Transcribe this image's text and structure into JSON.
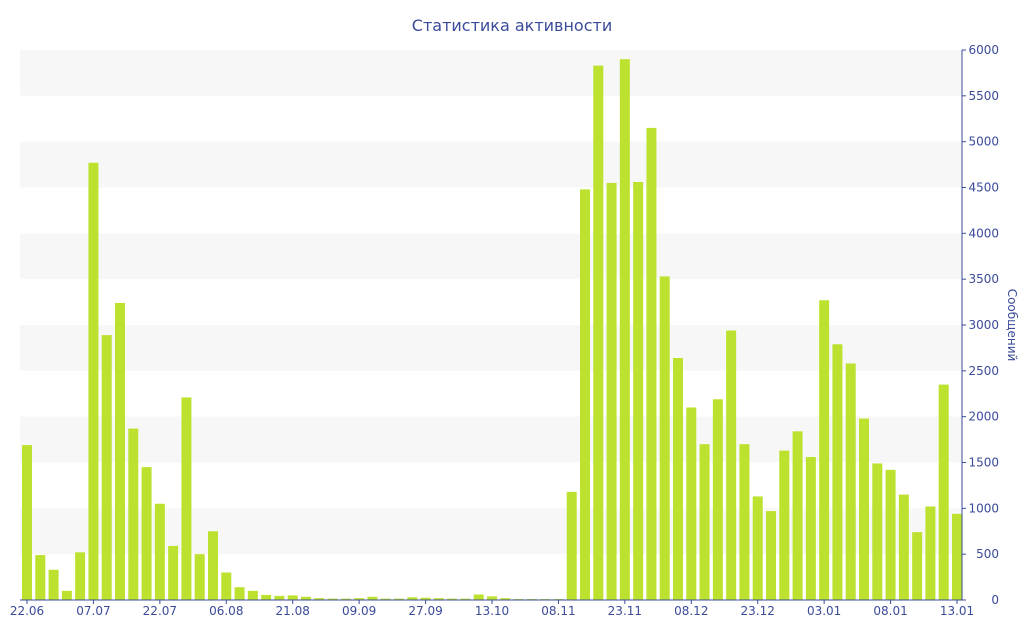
{
  "chart_data": {
    "type": "bar",
    "title": "Статистика активности",
    "ylabel": "Сообщений",
    "xlabel": "",
    "ylim": [
      0,
      6000
    ],
    "yticks": [
      0,
      500,
      1000,
      1500,
      2000,
      2500,
      3000,
      3500,
      4000,
      4500,
      5000,
      5500,
      6000
    ],
    "y_axis_side": "right",
    "grid": "alternating horizontal bands",
    "bar_color": "#bce22f",
    "text_color": "#3b4b9a",
    "x_tick_labels": [
      {
        "index": 0,
        "label": "22.06"
      },
      {
        "index": 5,
        "label": "07.07"
      },
      {
        "index": 10,
        "label": "22.07"
      },
      {
        "index": 15,
        "label": "06.08"
      },
      {
        "index": 20,
        "label": "21.08"
      },
      {
        "index": 25,
        "label": "09.09"
      },
      {
        "index": 30,
        "label": "27.09"
      },
      {
        "index": 35,
        "label": "13.10"
      },
      {
        "index": 40,
        "label": "08.11"
      },
      {
        "index": 45,
        "label": "23.11"
      },
      {
        "index": 50,
        "label": "08.12"
      },
      {
        "index": 55,
        "label": "23.12"
      },
      {
        "index": 60,
        "label": "03.01"
      },
      {
        "index": 65,
        "label": "08.01"
      },
      {
        "index": 70,
        "label": "13.01"
      }
    ],
    "values": [
      1690,
      490,
      330,
      100,
      520,
      4770,
      2890,
      3240,
      1870,
      1450,
      1050,
      590,
      2210,
      500,
      750,
      300,
      140,
      100,
      55,
      45,
      50,
      35,
      20,
      15,
      15,
      20,
      35,
      15,
      15,
      30,
      25,
      20,
      15,
      15,
      60,
      40,
      20,
      10,
      10,
      10,
      10,
      1180,
      4480,
      5830,
      4550,
      5900,
      4560,
      5150,
      3530,
      2640,
      2100,
      1700,
      2190,
      2940,
      1700,
      1130,
      970,
      1630,
      1840,
      1560,
      3270,
      2790,
      2580,
      1980,
      1490,
      1420,
      1150,
      740,
      1020,
      2350,
      940
    ]
  }
}
